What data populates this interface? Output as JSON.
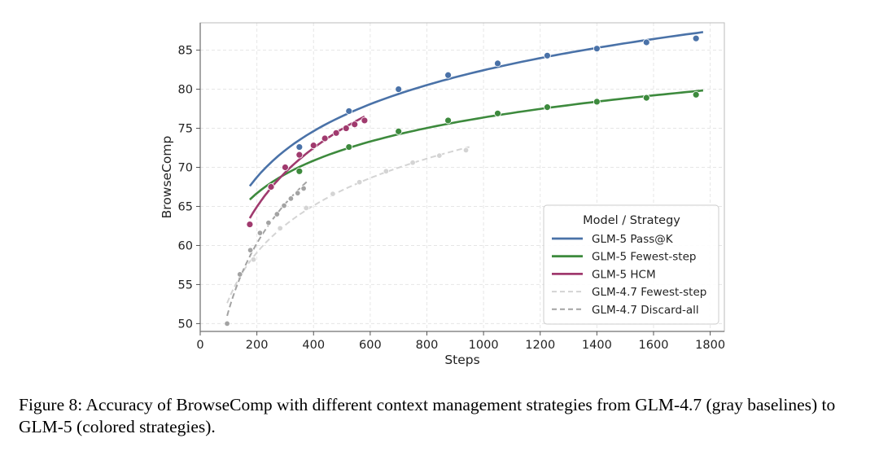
{
  "chart_data": {
    "type": "line",
    "xlabel": "Steps",
    "ylabel": "BrowseComp",
    "xlim": [
      0,
      1850
    ],
    "ylim": [
      49,
      88.5
    ],
    "xticks": [
      0,
      200,
      400,
      600,
      800,
      1000,
      1200,
      1400,
      1600,
      1800
    ],
    "yticks": [
      50,
      55,
      60,
      65,
      70,
      75,
      80,
      85
    ],
    "grid": true,
    "legend": {
      "title": "Model / Strategy",
      "placement": "lower-right"
    },
    "series": [
      {
        "name": "GLM-5 Pass@K",
        "color": "#4a72a8",
        "dash": false,
        "fit_range": [
          175,
          1775
        ],
        "x": [
          350,
          525,
          700,
          875,
          1050,
          1225,
          1400,
          1575,
          1750
        ],
        "y": [
          72.6,
          77.2,
          80.0,
          81.8,
          83.3,
          84.3,
          85.2,
          86.0,
          86.5
        ]
      },
      {
        "name": "GLM-5 Fewest-step",
        "color": "#3d8a3d",
        "dash": false,
        "fit_range": [
          175,
          1775
        ],
        "x": [
          350,
          525,
          700,
          875,
          1050,
          1225,
          1400,
          1575,
          1750
        ],
        "y": [
          69.5,
          72.6,
          74.6,
          76.0,
          76.9,
          77.7,
          78.4,
          78.9,
          79.3
        ]
      },
      {
        "name": "GLM-5 HCM",
        "color": "#a03a6e",
        "dash": false,
        "fit_range": [
          175,
          580
        ],
        "x": [
          175,
          250,
          300,
          350,
          400,
          440,
          480,
          515,
          545,
          580
        ],
        "y": [
          62.7,
          67.5,
          70.0,
          71.6,
          72.8,
          73.7,
          74.4,
          75.0,
          75.5,
          76.0
        ]
      },
      {
        "name": "GLM-4.7 Fewest-step",
        "color": "#d4d4d4",
        "dash": true,
        "fit_range": [
          95,
          950
        ],
        "x": [
          188,
          282,
          374,
          468,
          562,
          656,
          750,
          844,
          938
        ],
        "y": [
          58.2,
          62.2,
          64.8,
          66.6,
          68.1,
          69.5,
          70.6,
          71.5,
          72.2
        ]
      },
      {
        "name": "GLM-4.7 Discard-all",
        "color": "#a3a3a3",
        "dash": true,
        "fit_range": [
          95,
          380
        ],
        "x": [
          95,
          140,
          177,
          211,
          241,
          271,
          296,
          320,
          344,
          365
        ],
        "y": [
          50.0,
          56.3,
          59.4,
          61.6,
          62.9,
          64.0,
          65.1,
          66.0,
          66.7,
          67.3
        ]
      }
    ]
  },
  "caption": "Figure 8: Accuracy of BrowseComp with different context management strategies from GLM-4.7 (gray baselines) to GLM-5 (colored strategies)."
}
